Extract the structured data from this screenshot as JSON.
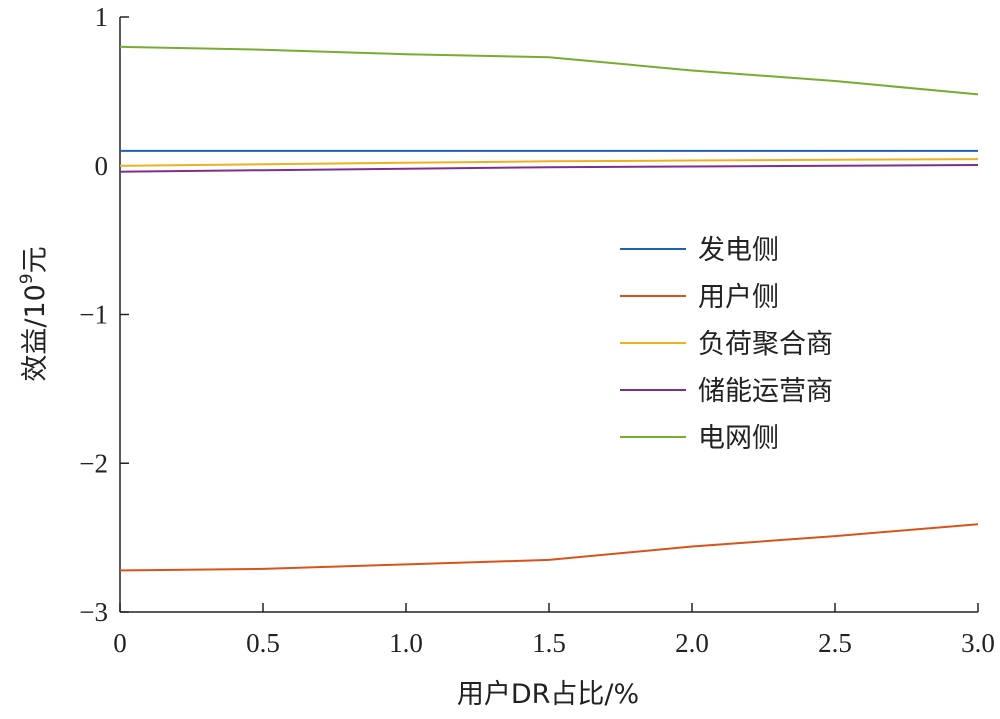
{
  "chart_data": {
    "type": "line",
    "xlabel": "用户DR占比/%",
    "ylabel_main": "效益/10",
    "ylabel_sup": "9",
    "ylabel_suffix": "元",
    "xlim": [
      0,
      3.0
    ],
    "ylim": [
      -3,
      1
    ],
    "xticks": [
      0,
      0.5,
      1.0,
      1.5,
      2.0,
      2.5,
      3.0
    ],
    "xtick_labels": [
      "0",
      "0.5",
      "1.0",
      "1.5",
      "2.0",
      "2.5",
      "3.0"
    ],
    "yticks": [
      1,
      0,
      -1,
      -2,
      -3
    ],
    "ytick_labels": [
      "1",
      "0",
      "−1",
      "−2",
      "−3"
    ],
    "grid": false,
    "legend_position": "right-center",
    "x": [
      0,
      0.5,
      1.0,
      1.5,
      2.0,
      2.5,
      3.0
    ],
    "series": [
      {
        "name": "发电侧",
        "color": "#1f5fb4",
        "values": [
          0.1,
          0.1,
          0.1,
          0.1,
          0.1,
          0.1,
          0.1
        ]
      },
      {
        "name": "用户侧",
        "color": "#d95319",
        "values": [
          -2.72,
          -2.71,
          -2.68,
          -2.65,
          -2.56,
          -2.49,
          -2.41
        ]
      },
      {
        "name": "负荷聚合商",
        "color": "#edb120",
        "values": [
          0.0,
          0.01,
          0.02,
          0.03,
          0.035,
          0.04,
          0.045
        ]
      },
      {
        "name": "储能运营商",
        "color": "#7e2f8e",
        "values": [
          -0.04,
          -0.03,
          -0.02,
          -0.01,
          -0.005,
          0.0,
          0.005
        ]
      },
      {
        "name": "电网侧",
        "color": "#77ac30",
        "values": [
          0.8,
          0.78,
          0.75,
          0.73,
          0.64,
          0.57,
          0.48
        ]
      }
    ]
  }
}
